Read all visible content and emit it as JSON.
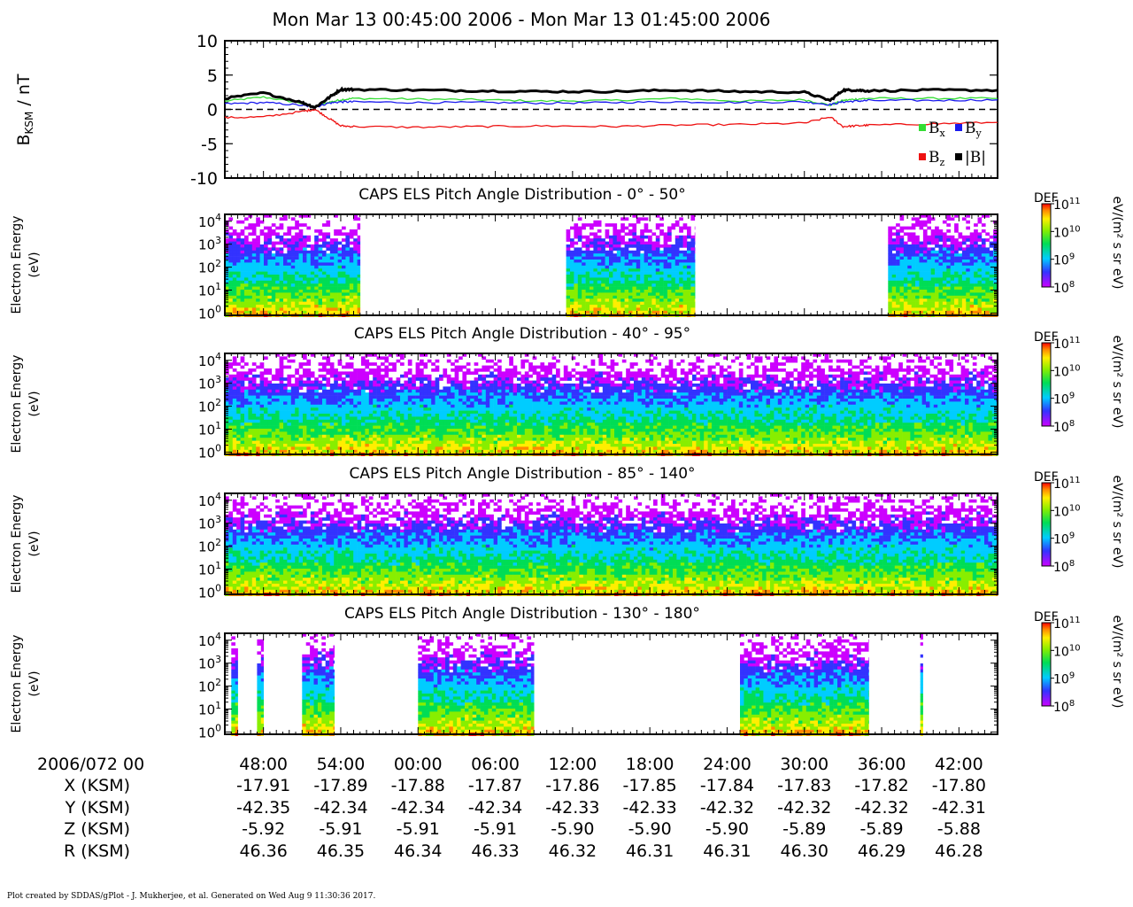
{
  "figure_title": "Mon Mar 13 00:45:00 2006 - Mon Mar 13 01:45:00 2006",
  "footer": "Plot created by SDDAS/gPlot - J. Mukherjee, et al.  Generated on Wed Aug 9 11:30:36 2017.",
  "colors": {
    "bx": "#33dd33",
    "by": "#1a1aee",
    "bz": "#ee1111",
    "bmag": "#000000"
  },
  "chart_data": [
    {
      "type": "line",
      "ylabel_main": "B",
      "ylabel_sub": "KSM",
      "ylabel_unit": " / nT",
      "ylim": [
        -10,
        10
      ],
      "yticks": [
        "10",
        "5",
        "0",
        "-5",
        "-10"
      ],
      "zero_line": "dashed",
      "legend": [
        "B",
        "B",
        "B",
        "|B|"
      ],
      "legend_subs": [
        "x",
        "y",
        "z",
        ""
      ],
      "legend_placement": "bottom-right",
      "x_minutes": [
        0,
        3,
        6,
        7,
        8,
        9,
        10,
        15,
        20,
        25,
        30,
        35,
        40,
        45,
        47,
        48,
        49,
        50,
        55,
        60
      ],
      "series": [
        {
          "name": "B",
          "key": "bx",
          "values": [
            1.2,
            1.8,
            0.9,
            0.3,
            1.0,
            1.4,
            1.6,
            1.5,
            1.4,
            1.2,
            1.3,
            1.6,
            1.2,
            1.4,
            0.6,
            1.3,
            1.5,
            1.6,
            1.6,
            1.6
          ]
        },
        {
          "name": "B",
          "key": "by",
          "values": [
            0.8,
            1.0,
            0.6,
            0.3,
            0.9,
            1.1,
            1.1,
            1.0,
            1.0,
            0.9,
            1.0,
            1.1,
            1.0,
            1.1,
            0.7,
            1.1,
            1.2,
            1.3,
            1.3,
            1.4
          ]
        },
        {
          "name": "B",
          "key": "bz",
          "values": [
            -1.2,
            -1.1,
            -0.3,
            0.0,
            -1.2,
            -2.4,
            -2.5,
            -2.6,
            -2.5,
            -2.4,
            -2.5,
            -2.3,
            -2.2,
            -2.0,
            -1.1,
            -2.5,
            -2.4,
            -2.3,
            -2.1,
            -1.9
          ]
        },
        {
          "name": "|B|",
          "key": "bmag",
          "values": [
            1.6,
            2.4,
            1.0,
            0.3,
            1.6,
            2.9,
            2.9,
            2.8,
            2.7,
            2.6,
            2.6,
            2.8,
            2.6,
            2.5,
            1.3,
            2.8,
            2.8,
            2.7,
            2.8,
            2.8
          ]
        }
      ]
    },
    {
      "type": "heatmap",
      "title": "CAPS ELS Pitch Angle Distribution - 0° - 50°",
      "ylabel": [
        "Electron Energy",
        "(eV)"
      ],
      "y_scale": "log",
      "ylim_log10": [
        -0.1,
        4.3
      ],
      "yticks_exp": [
        "4",
        "3",
        "2",
        "1",
        "0"
      ],
      "coverage_minutes": [
        [
          0,
          10.5
        ],
        [
          26.5,
          36.5
        ],
        [
          51.5,
          60
        ]
      ],
      "colorbar": {
        "label": "DEF",
        "unit": "eV/(m² s sr eV)",
        "tick_exps": [
          "11",
          "10",
          "9",
          "8"
        ]
      }
    },
    {
      "type": "heatmap",
      "title": "CAPS ELS Pitch Angle Distribution - 40° - 95°",
      "ylabel": [
        "Electron Energy",
        "(eV)"
      ],
      "y_scale": "log",
      "ylim_log10": [
        -0.1,
        4.3
      ],
      "yticks_exp": [
        "4",
        "3",
        "2",
        "1",
        "0"
      ],
      "coverage_minutes": [
        [
          0,
          60
        ]
      ],
      "colorbar": {
        "label": "DEF",
        "unit": "eV/(m² s sr eV)",
        "tick_exps": [
          "11",
          "10",
          "9",
          "8"
        ]
      }
    },
    {
      "type": "heatmap",
      "title": "CAPS ELS Pitch Angle Distribution - 85° - 140°",
      "ylabel": [
        "Electron Energy",
        "(eV)"
      ],
      "y_scale": "log",
      "ylim_log10": [
        -0.1,
        4.3
      ],
      "yticks_exp": [
        "4",
        "3",
        "2",
        "1",
        "0"
      ],
      "coverage_minutes": [
        [
          0,
          60
        ]
      ],
      "colorbar": {
        "label": "DEF",
        "unit": "eV/(m² s sr eV)",
        "tick_exps": [
          "11",
          "10",
          "9",
          "8"
        ]
      }
    },
    {
      "type": "heatmap",
      "title": "CAPS ELS Pitch Angle Distribution - 130° - 180°",
      "ylabel": [
        "Electron Energy",
        "(eV)"
      ],
      "y_scale": "log",
      "ylim_log10": [
        -0.1,
        4.3
      ],
      "yticks_exp": [
        "4",
        "3",
        "2",
        "1",
        "0"
      ],
      "coverage_minutes": [
        [
          0.5,
          1
        ],
        [
          2.5,
          3
        ],
        [
          6,
          8.5
        ],
        [
          15,
          24
        ],
        [
          40,
          50
        ],
        [
          54,
          54.2
        ]
      ],
      "colorbar": {
        "label": "DEF",
        "unit": "eV/(m² s sr eV)",
        "tick_exps": [
          "11",
          "10",
          "9",
          "8"
        ]
      }
    }
  ],
  "time_axis": {
    "xlim_minutes": [
      0,
      60
    ],
    "tick_minutes": [
      3,
      9,
      15,
      21,
      27,
      33,
      39,
      45,
      51,
      57
    ],
    "date_label": "2006/072 00",
    "tick_labels": [
      "48:00",
      "54:00",
      "00:00",
      "06:00",
      "12:00",
      "18:00",
      "24:00",
      "30:00",
      "36:00",
      "42:00"
    ],
    "rows": [
      {
        "label": "X (KSM)",
        "values": [
          "-17.91",
          "-17.89",
          "-17.88",
          "-17.87",
          "-17.86",
          "-17.85",
          "-17.84",
          "-17.83",
          "-17.82",
          "-17.80"
        ]
      },
      {
        "label": "Y (KSM)",
        "values": [
          "-42.35",
          "-42.34",
          "-42.34",
          "-42.34",
          "-42.33",
          "-42.33",
          "-42.32",
          "-42.32",
          "-42.32",
          "-42.31"
        ]
      },
      {
        "label": "Z (KSM)",
        "values": [
          "-5.92",
          "-5.91",
          "-5.91",
          "-5.91",
          "-5.90",
          "-5.90",
          "-5.90",
          "-5.89",
          "-5.89",
          "-5.88"
        ]
      },
      {
        "label": "R (KSM)",
        "values": [
          "46.36",
          "46.35",
          "46.34",
          "46.33",
          "46.32",
          "46.31",
          "46.31",
          "46.30",
          "46.29",
          "46.28"
        ]
      }
    ]
  }
}
